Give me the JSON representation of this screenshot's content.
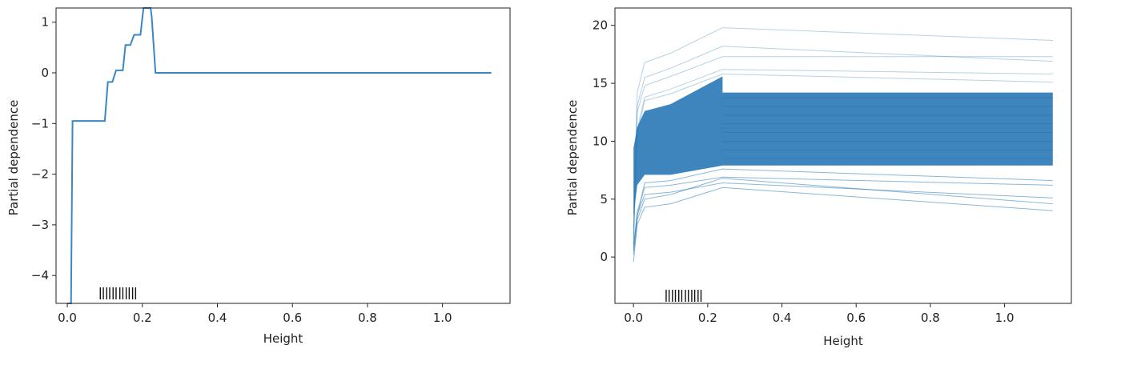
{
  "chart_data": [
    {
      "type": "line",
      "xlabel": "Height",
      "ylabel": "Partial dependence",
      "xlim": [
        -0.03,
        1.18
      ],
      "ylim": [
        -4.55,
        1.28
      ],
      "xticks": [
        0.0,
        0.2,
        0.4,
        0.6,
        0.8,
        1.0
      ],
      "xtick_labels": [
        "0.0",
        "0.2",
        "0.4",
        "0.6",
        "0.8",
        "1.0"
      ],
      "yticks": [
        1,
        0,
        -1,
        -2,
        -3,
        -4
      ],
      "ytick_labels": [
        "1",
        "0",
        "−1",
        "−2",
        "−3",
        "−4"
      ],
      "color": "#3a87c6",
      "series": [
        {
          "x": [
            0.0,
            0.01,
            0.014,
            0.1,
            0.108,
            0.12,
            0.13,
            0.148,
            0.155,
            0.168,
            0.178,
            0.195,
            0.203,
            0.222,
            0.225,
            0.235,
            0.24,
            1.13
          ],
          "y": [
            -4.55,
            -4.55,
            -0.95,
            -0.95,
            -0.18,
            -0.18,
            0.05,
            0.05,
            0.55,
            0.55,
            0.75,
            0.75,
            1.28,
            1.28,
            1.1,
            0.0,
            0.0,
            0.0
          ]
        }
      ],
      "rug": [
        0.088,
        0.096,
        0.105,
        0.113,
        0.122,
        0.13,
        0.14,
        0.148,
        0.157,
        0.165,
        0.174,
        0.182
      ]
    },
    {
      "type": "line",
      "style": "ice",
      "xlabel": "Height",
      "ylabel": "Partial dependence",
      "xlim": [
        -0.05,
        1.18
      ],
      "ylim": [
        -4.0,
        21.5
      ],
      "xticks": [
        0.0,
        0.2,
        0.4,
        0.6,
        0.8,
        1.0
      ],
      "xtick_labels": [
        "0.0",
        "0.2",
        "0.4",
        "0.6",
        "0.8",
        "1.0"
      ],
      "yticks": [
        0,
        5,
        10,
        15,
        20
      ],
      "ytick_labels": [
        "0",
        "5",
        "10",
        "15",
        "20"
      ],
      "color": "#2c7bb6",
      "band": {
        "low": 7.9,
        "high": 14.2,
        "low_plateau_start": 7.1,
        "high_plateau_start": 15.6
      },
      "series": [
        {
          "x": [
            0.0,
            0.01,
            0.03,
            0.1,
            0.24,
            1.13
          ],
          "y": [
            1.6,
            12.5,
            14.8,
            15.6,
            17.3,
            17.3
          ]
        },
        {
          "x": [
            0.0,
            0.01,
            0.03,
            0.1,
            0.24,
            1.13
          ],
          "y": [
            2.5,
            14.2,
            16.8,
            17.6,
            19.8,
            18.7
          ]
        },
        {
          "x": [
            0.0,
            0.01,
            0.03,
            0.1,
            0.24,
            1.13
          ],
          "y": [
            2.0,
            13.0,
            15.5,
            16.3,
            18.2,
            16.9
          ]
        },
        {
          "x": [
            0.0,
            0.01,
            0.03,
            0.1,
            0.24,
            1.13
          ],
          "y": [
            1.2,
            11.0,
            13.8,
            14.5,
            16.2,
            15.8
          ]
        },
        {
          "x": [
            0.0,
            0.01,
            0.03,
            0.1,
            0.24,
            1.13
          ],
          "y": [
            1.0,
            10.6,
            13.5,
            14.1,
            15.8,
            15.1
          ]
        },
        {
          "x": [
            0.0,
            0.01,
            0.03,
            0.1,
            0.24,
            1.13
          ],
          "y": [
            0.5,
            3.5,
            6.4,
            6.6,
            7.6,
            6.6
          ]
        },
        {
          "x": [
            0.0,
            0.01,
            0.03,
            0.1,
            0.24,
            1.13
          ],
          "y": [
            0.7,
            3.9,
            6.0,
            6.2,
            6.9,
            6.2
          ]
        },
        {
          "x": [
            0.0,
            0.01,
            0.03,
            0.1,
            0.24,
            1.13
          ],
          "y": [
            1.0,
            3.6,
            5.4,
            5.6,
            6.4,
            5.1
          ]
        },
        {
          "x": [
            0.0,
            0.01,
            0.03,
            0.1,
            0.24,
            1.13
          ],
          "y": [
            -0.4,
            2.8,
            4.3,
            4.6,
            6.0,
            4.0
          ]
        },
        {
          "x": [
            0.0,
            0.01,
            0.03,
            0.1,
            0.24,
            1.13
          ],
          "y": [
            0.2,
            3.2,
            5.0,
            5.4,
            6.8,
            4.6
          ]
        }
      ],
      "rug": [
        0.088,
        0.096,
        0.105,
        0.113,
        0.122,
        0.13,
        0.14,
        0.148,
        0.157,
        0.165,
        0.174,
        0.182
      ]
    }
  ]
}
